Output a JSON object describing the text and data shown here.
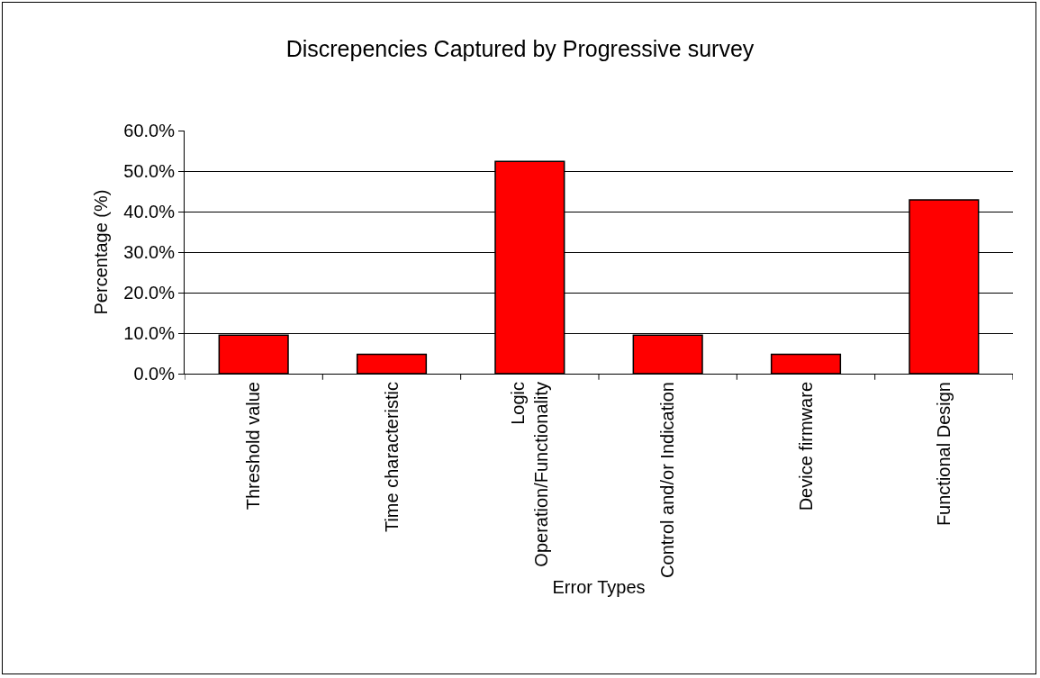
{
  "chart_data": {
    "type": "bar",
    "title": "Discrepencies Captured by Progressive survey",
    "xlabel": "Error Types",
    "ylabel": "Percentage (%)",
    "categories": [
      "Threshold value",
      "Time characteristic",
      "Logic\nOperation/Functionality",
      "Control and/or Indication",
      "Device firmware",
      "Functional Design"
    ],
    "values": [
      9.5,
      4.8,
      52.4,
      9.5,
      4.8,
      42.9
    ],
    "color": "#ff0000",
    "ylim": [
      0,
      60
    ],
    "yticks": [
      {
        "value": 0,
        "label": "0.0%"
      },
      {
        "value": 10,
        "label": "10.0%"
      },
      {
        "value": 20,
        "label": "20.0%"
      },
      {
        "value": 30,
        "label": "30.0%"
      },
      {
        "value": 40,
        "label": "40.0%"
      },
      {
        "value": 50,
        "label": "50.0%"
      },
      {
        "value": 60,
        "label": "60.0%"
      }
    ],
    "grid": "y"
  }
}
